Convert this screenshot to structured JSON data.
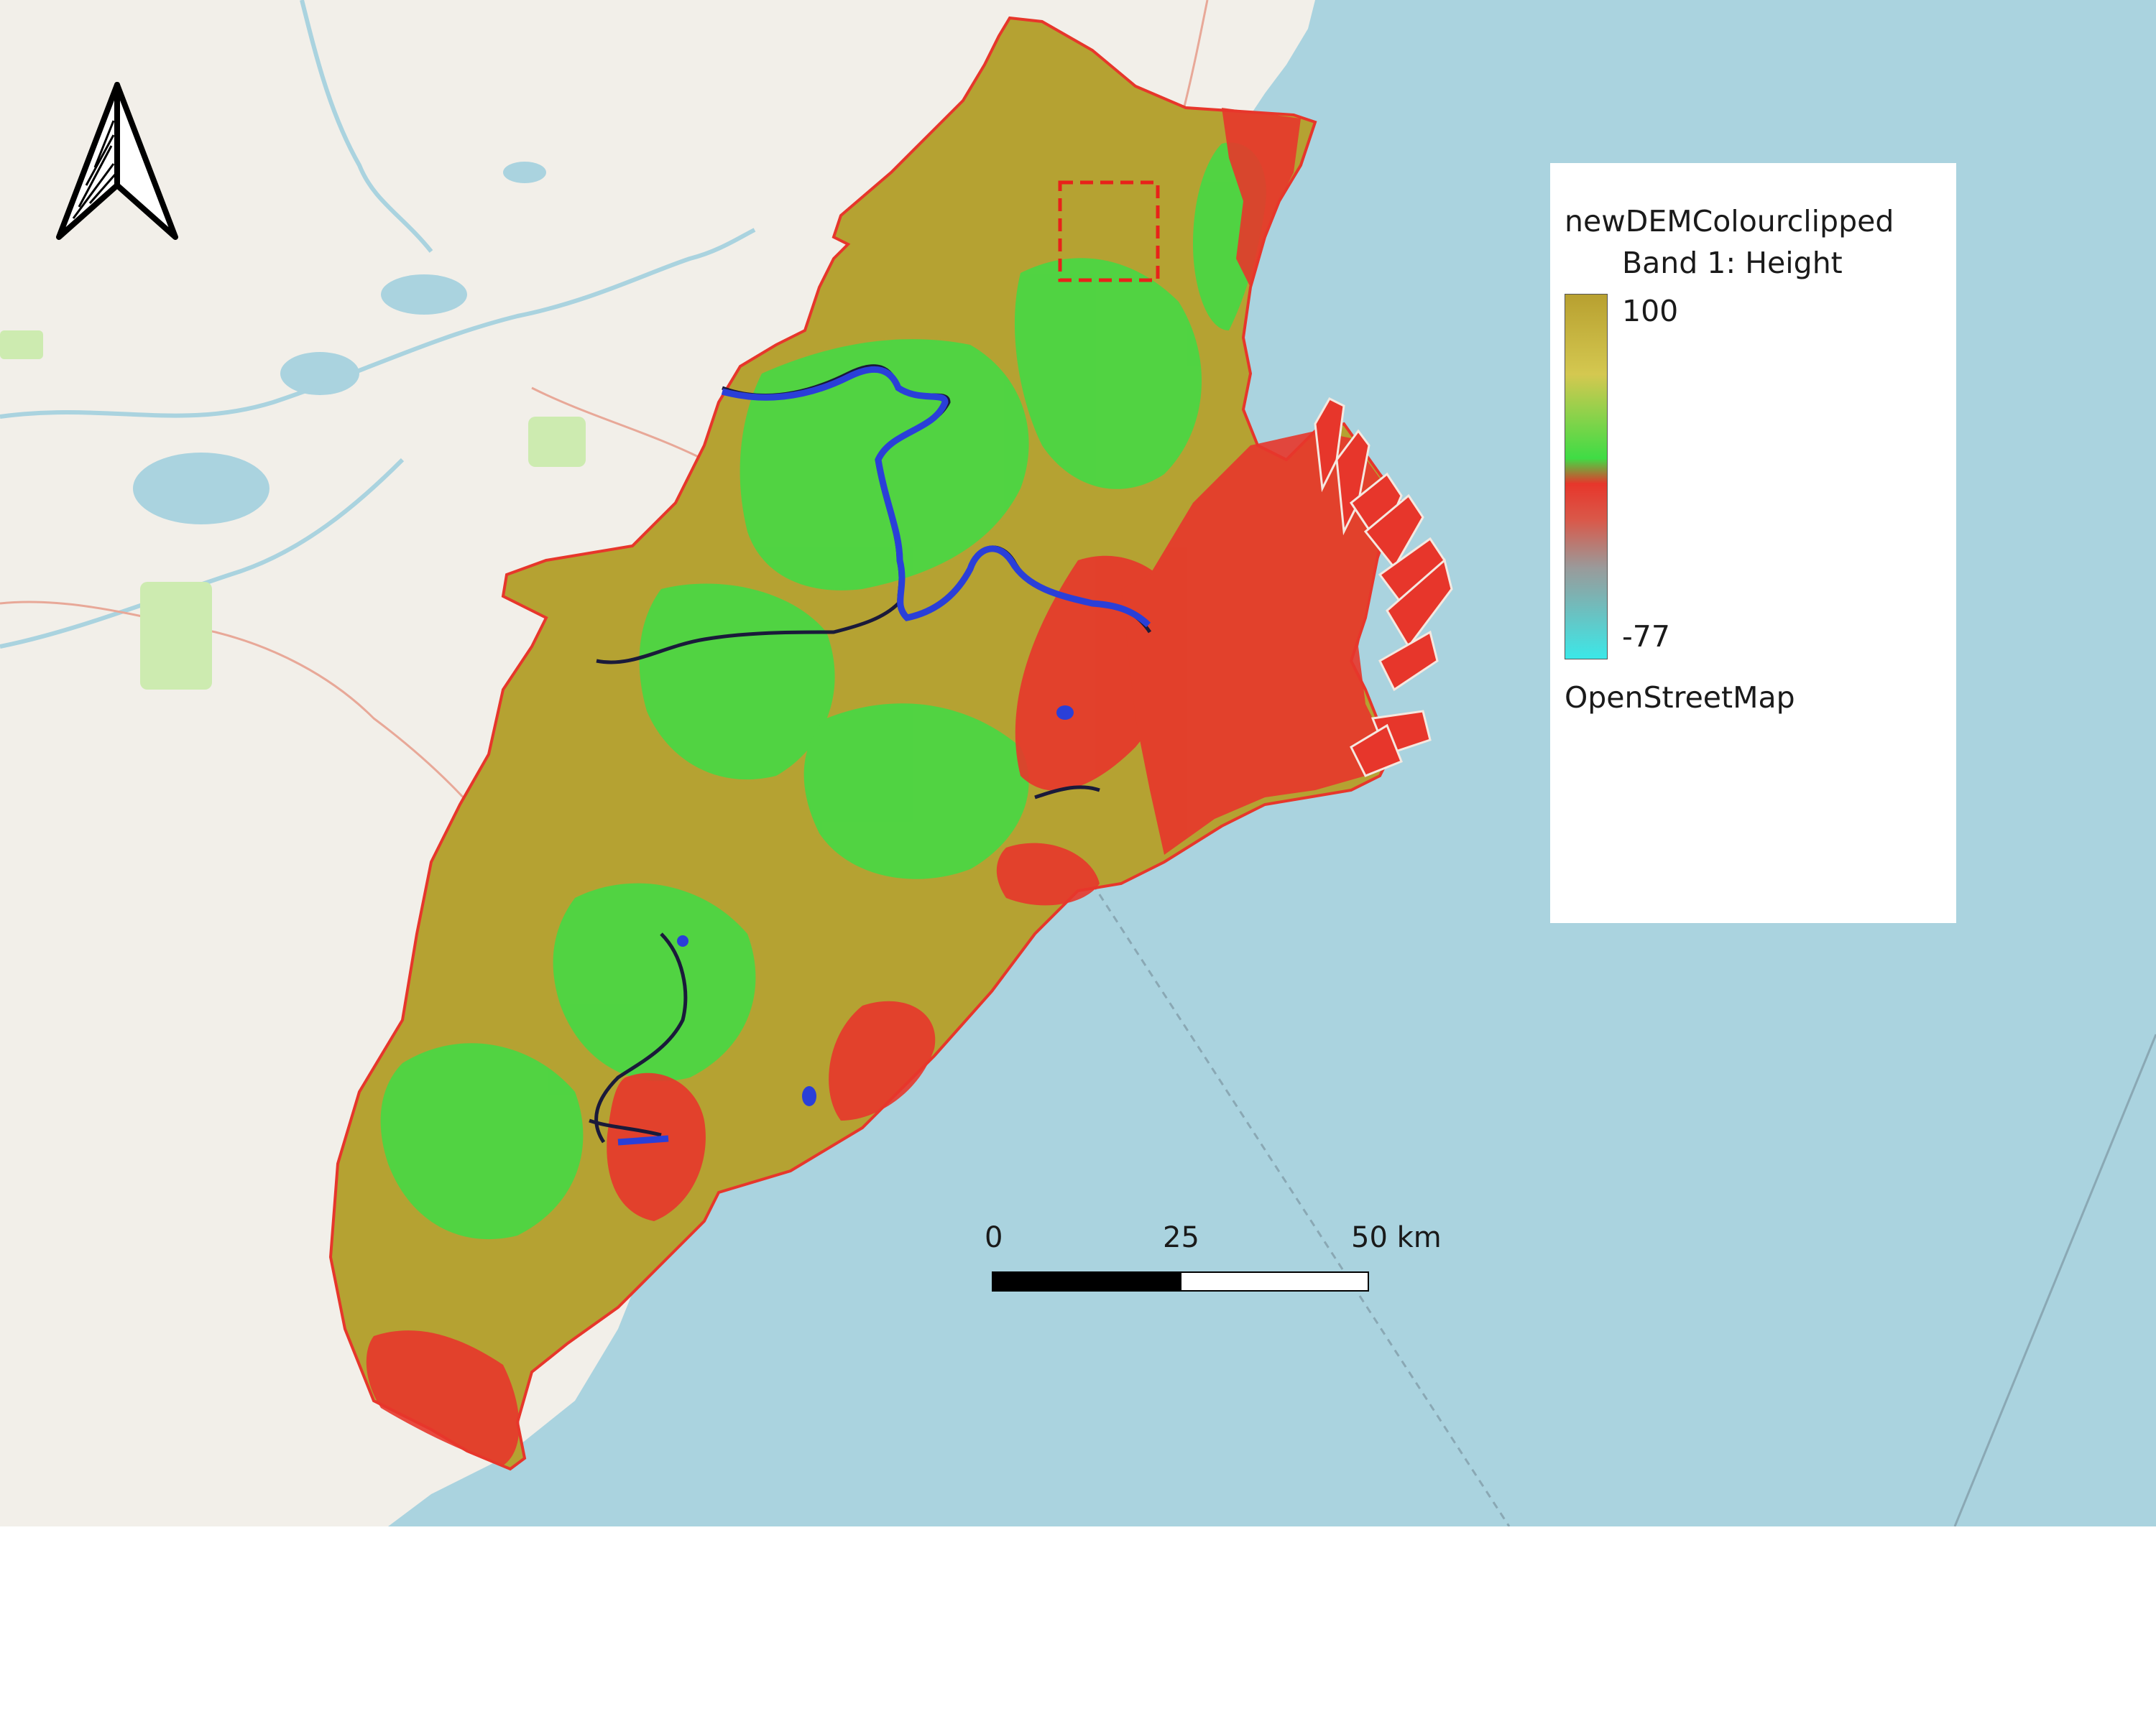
{
  "legend": {
    "layer_name": "newDEMColourclipped",
    "band_label": "Band 1: Height",
    "max_value": "100",
    "min_value": "-77",
    "basemap_label": "OpenStreetMap",
    "ramp_colors": [
      "#b8a030",
      "#d4c850",
      "#3fdc45",
      "#e7362b",
      "#d9594a",
      "#9a9a9a",
      "#3be8e8"
    ]
  },
  "scale_bar": {
    "labels": [
      "0",
      "25",
      "50 km"
    ]
  },
  "map": {
    "sea_color": "#aad3df",
    "land_color": "#f2efe9",
    "dem_high_color": "#b5a232",
    "dem_mid_color": "#3fdc45",
    "dem_low_color": "#e7362b",
    "river_color": "#2a3fd8",
    "study_box_color": "#e8221a"
  },
  "north_arrow": {
    "icon": "north-arrow-icon"
  }
}
